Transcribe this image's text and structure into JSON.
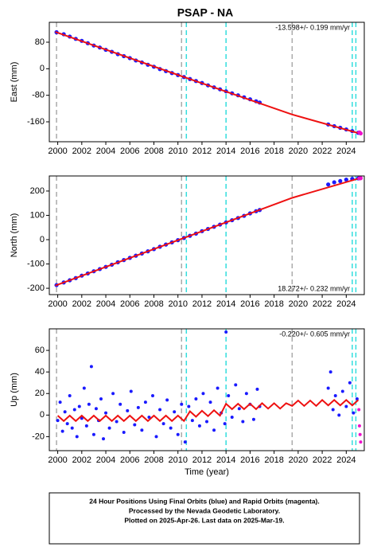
{
  "title": "PSAP - NA",
  "footer": [
    "24 Hour Positions Using Final Orbits (blue) and Rapid Orbits (magenta).",
    "Processed by the Nevada Geodetic Laboratory.",
    "Plotted on 2025-Apr-26. Last data on 2025-Mar-19."
  ],
  "vlines": [
    {
      "x": 1999.9,
      "color": "#aaaaaa"
    },
    {
      "x": 2010.3,
      "color": "#aaaaaa"
    },
    {
      "x": 2010.7,
      "color": "#33dddd"
    },
    {
      "x": 2014.0,
      "color": "#33dddd"
    },
    {
      "x": 2019.5,
      "color": "#aaaaaa"
    },
    {
      "x": 2024.5,
      "color": "#33dddd"
    },
    {
      "x": 2024.8,
      "color": "#33dddd"
    }
  ],
  "chart_data": [
    {
      "type": "scatter",
      "ylabel": "East (mm)",
      "annotation": "-13.598+/- 0.199 mm/yr",
      "annotation_position": "top-right",
      "xlim": [
        1999.3,
        2025.5
      ],
      "xticks": [
        2000,
        2002,
        2004,
        2006,
        2008,
        2010,
        2012,
        2014,
        2016,
        2018,
        2020,
        2022,
        2024
      ],
      "ylim": [
        -220,
        140
      ],
      "yticks": [
        -160,
        -80,
        0,
        80
      ],
      "series": [
        {
          "name": "Final Orbits",
          "color": "#1a1aff",
          "mode": "points",
          "x": [
            1999.9,
            2000.5,
            2001,
            2001.5,
            2002,
            2002.5,
            2003,
            2003.5,
            2004,
            2004.5,
            2005,
            2005.5,
            2006,
            2006.5,
            2007,
            2007.5,
            2008,
            2008.5,
            2009,
            2009.5,
            2010,
            2010.5,
            2011,
            2011.5,
            2012,
            2012.5,
            2013,
            2013.5,
            2014,
            2014.5,
            2015,
            2015.5,
            2016,
            2016.5,
            2016.8,
            2022.5,
            2023,
            2023.5,
            2024,
            2024.5,
            2025
          ],
          "values": [
            110,
            104,
            97,
            90,
            84,
            77,
            70,
            64,
            57,
            51,
            44,
            38,
            32,
            25,
            19,
            12,
            6,
            -1,
            -7,
            -13,
            -19,
            -25,
            -31,
            -37,
            -43,
            -50,
            -56,
            -62,
            -68,
            -74,
            -80,
            -86,
            -92,
            -98,
            -102,
            -168,
            -173,
            -178,
            -183,
            -188,
            -193
          ]
        },
        {
          "name": "Model",
          "color": "#ee1111",
          "mode": "line",
          "x": [
            1999.8,
            2010.5,
            2019.5,
            2025.2
          ],
          "values": [
            111,
            -25,
            -138,
            -196
          ]
        },
        {
          "name": "Rapid Orbits",
          "color": "#ee11cc",
          "mode": "points",
          "x": [
            2025.1,
            2025.2
          ],
          "values": [
            -192,
            -195
          ]
        }
      ]
    },
    {
      "type": "scatter",
      "ylabel": "North (mm)",
      "annotation": "18.272+/- 0.232 mm/yr",
      "annotation_position": "bottom-right",
      "xlim": [
        1999.3,
        2025.5
      ],
      "xticks": [
        2000,
        2002,
        2004,
        2006,
        2008,
        2010,
        2012,
        2014,
        2016,
        2018,
        2020,
        2022,
        2024
      ],
      "ylim": [
        -226,
        262
      ],
      "yticks": [
        -200,
        -100,
        0,
        100,
        200
      ],
      "series": [
        {
          "name": "Final Orbits",
          "color": "#1a1aff",
          "mode": "points",
          "x": [
            1999.9,
            2000.5,
            2001,
            2001.5,
            2002,
            2002.5,
            2003,
            2003.5,
            2004,
            2004.5,
            2005,
            2005.5,
            2006,
            2006.5,
            2007,
            2007.5,
            2008,
            2008.5,
            2009,
            2009.5,
            2010,
            2010.5,
            2011,
            2011.5,
            2012,
            2012.5,
            2013,
            2013.5,
            2014,
            2014.5,
            2015,
            2015.5,
            2016,
            2016.5,
            2016.8,
            2022.5,
            2023,
            2023.5,
            2024,
            2024.5,
            2025
          ],
          "values": [
            -187,
            -176,
            -167,
            -158,
            -148,
            -139,
            -130,
            -121,
            -112,
            -103,
            -93,
            -84,
            -75,
            -66,
            -57,
            -48,
            -39,
            -29,
            -20,
            -11,
            -2,
            7,
            16,
            25,
            35,
            44,
            53,
            62,
            71,
            80,
            89,
            98,
            108,
            117,
            122,
            227,
            236,
            241,
            247,
            250,
            252
          ]
        },
        {
          "name": "Model",
          "color": "#ee1111",
          "mode": "line",
          "x": [
            1999.8,
            2019.5,
            2025.2
          ],
          "values": [
            -189,
            172,
            254
          ]
        },
        {
          "name": "Rapid Orbits",
          "color": "#ee11cc",
          "mode": "points",
          "x": [
            2025.1,
            2025.2
          ],
          "values": [
            252,
            253
          ]
        }
      ]
    },
    {
      "type": "scatter",
      "ylabel": "Up (mm)",
      "xlabel": "Time (year)",
      "annotation": "-0.220+/- 0.605 mm/yr",
      "annotation_position": "top-right",
      "xlim": [
        1999.3,
        2025.5
      ],
      "xticks": [
        2000,
        2002,
        2004,
        2006,
        2008,
        2010,
        2012,
        2014,
        2016,
        2018,
        2020,
        2022,
        2024
      ],
      "ylim": [
        -33,
        80
      ],
      "yticks": [
        -20,
        0,
        20,
        40,
        60
      ],
      "series": [
        {
          "name": "Final Orbits",
          "color": "#1a1aff",
          "mode": "points",
          "x": [
            2000.0,
            2000.2,
            2000.4,
            2000.6,
            2000.8,
            2001.0,
            2001.2,
            2001.4,
            2001.6,
            2001.8,
            2002.0,
            2002.2,
            2002.4,
            2002.6,
            2002.8,
            2003.0,
            2003.2,
            2003.4,
            2003.6,
            2003.8,
            2004.0,
            2004.3,
            2004.6,
            2004.9,
            2005.2,
            2005.5,
            2005.8,
            2006.1,
            2006.4,
            2006.7,
            2007.0,
            2007.3,
            2007.6,
            2007.9,
            2008.2,
            2008.5,
            2008.8,
            2009.1,
            2009.4,
            2009.7,
            2010.0,
            2010.3,
            2010.6,
            2010.9,
            2011.2,
            2011.5,
            2011.8,
            2012.1,
            2012.4,
            2012.7,
            2013.0,
            2013.3,
            2013.6,
            2013.9,
            2014.0,
            2014.2,
            2014.5,
            2014.8,
            2015.1,
            2015.4,
            2015.7,
            2016.0,
            2016.3,
            2016.6,
            2016.8,
            2022.5,
            2022.7,
            2022.9,
            2023.1,
            2023.4,
            2023.7,
            2024.0,
            2024.3,
            2024.6,
            2024.9
          ],
          "values": [
            -5,
            12,
            -15,
            3,
            -8,
            18,
            -12,
            5,
            -20,
            8,
            -3,
            25,
            -10,
            10,
            45,
            -18,
            6,
            -5,
            15,
            -22,
            2,
            -12,
            20,
            -6,
            10,
            -16,
            4,
            22,
            -9,
            7,
            -14,
            12,
            -2,
            18,
            -20,
            5,
            -8,
            14,
            -12,
            3,
            -18,
            10,
            -25,
            8,
            -5,
            15,
            -10,
            20,
            -6,
            12,
            -14,
            25,
            2,
            -8,
            77,
            18,
            -2,
            28,
            6,
            -6,
            20,
            10,
            -4,
            24,
            8,
            25,
            40,
            5,
            18,
            0,
            22,
            8,
            30,
            2,
            15
          ]
        },
        {
          "name": "Model",
          "color": "#ee1111",
          "mode": "line",
          "x": [
            2000,
            2000.5,
            2001,
            2001.5,
            2002,
            2002.5,
            2003,
            2003.5,
            2004,
            2004.5,
            2005,
            2005.5,
            2006,
            2006.5,
            2007,
            2007.5,
            2008,
            2008.5,
            2009,
            2009.5,
            2010,
            2010.5,
            2011,
            2011.5,
            2012,
            2012.5,
            2013,
            2013.5,
            2014,
            2014.5,
            2015,
            2015.5,
            2016,
            2016.5,
            2017,
            2017.5,
            2018,
            2018.5,
            2019,
            2019.5,
            2020,
            2020.5,
            2021,
            2021.5,
            2022,
            2022.5,
            2023,
            2023.5,
            2024,
            2024.5,
            2025
          ],
          "values": [
            -0.5,
            -5.5,
            -0.5,
            -5.5,
            -0.5,
            -5.5,
            -0.5,
            -5.5,
            -0.5,
            -5.5,
            -0.5,
            -5.5,
            -0.5,
            -5.5,
            -0.5,
            -5.5,
            -0.5,
            -5.5,
            -0.5,
            -5.5,
            -0.5,
            -5.5,
            3.5,
            -1.5,
            4,
            -1,
            4.5,
            -0.5,
            10.5,
            5.5,
            10.5,
            5.5,
            10.5,
            5.5,
            11,
            6,
            11,
            6,
            11,
            8.5,
            13.5,
            8.5,
            13.5,
            8.5,
            14,
            9,
            14,
            9,
            14,
            9,
            14
          ]
        },
        {
          "name": "Rapid Orbits",
          "color": "#ee11cc",
          "mode": "points",
          "x": [
            2025.05,
            2025.1,
            2025.15,
            2025.2
          ],
          "values": [
            5,
            -10,
            -18,
            -25
          ]
        }
      ]
    }
  ]
}
